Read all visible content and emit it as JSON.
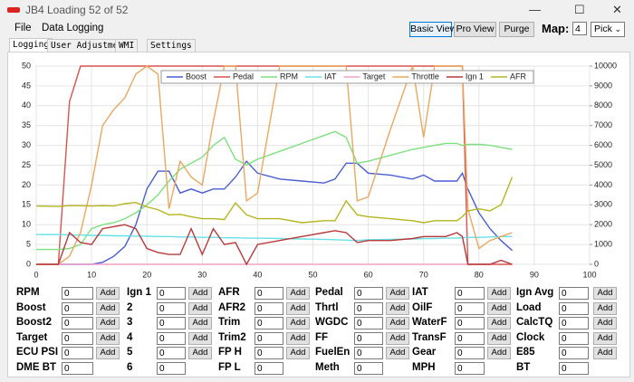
{
  "window": {
    "title": "JB4 Loading 52 of 52"
  },
  "menu": [
    "File",
    "Data Logging"
  ],
  "toolbar": {
    "buttons": [
      "Basic View",
      "Pro View",
      "Purge"
    ],
    "map_label": "Map:",
    "map_value": "4",
    "pick": "Pick"
  },
  "tabs": [
    "Logging",
    "User Adjustment",
    "WMI",
    "Settings"
  ],
  "chart_data": {
    "type": "line",
    "x": [
      0,
      4,
      6,
      8,
      10,
      12,
      14,
      16,
      18,
      20,
      22,
      24,
      26,
      28,
      30,
      32,
      34,
      36,
      38,
      40,
      44,
      48,
      52,
      54,
      56,
      58,
      60,
      64,
      68,
      70,
      72,
      74,
      76,
      77,
      78,
      80,
      82,
      84,
      86
    ],
    "xlim": [
      0,
      100
    ],
    "xticks": [
      0,
      10,
      20,
      30,
      40,
      50,
      60,
      70,
      80,
      90,
      100
    ],
    "ylim": [
      0,
      50
    ],
    "yticks": [
      0,
      5,
      10,
      15,
      20,
      25,
      30,
      35,
      40,
      45,
      50
    ],
    "y2lim": [
      0,
      10000
    ],
    "y2ticks": [
      0,
      1000,
      2000,
      3000,
      4000,
      5000,
      6000,
      7000,
      8000,
      9000,
      10000
    ],
    "grid": true,
    "legend": "top",
    "series": [
      {
        "name": "Boost",
        "color": "#4a5fd0",
        "values": [
          0,
          0,
          0,
          0,
          0,
          0.5,
          2,
          4.5,
          10,
          19,
          23.5,
          23.5,
          18,
          19,
          18,
          19,
          19,
          22,
          26,
          23,
          21.5,
          21,
          20.5,
          21.5,
          25.5,
          25.5,
          23,
          22.5,
          21.5,
          22.5,
          21,
          21,
          21,
          23,
          19,
          13,
          9,
          6,
          3.5
        ]
      },
      {
        "name": "Pedal",
        "color": "#d9534f",
        "values": [
          0,
          0,
          41,
          50,
          50,
          50,
          50,
          50,
          50,
          50,
          50,
          50,
          50,
          50,
          50,
          50,
          50,
          50,
          50,
          50,
          50,
          50,
          50,
          50,
          50,
          50,
          50,
          50,
          50,
          50,
          50,
          50,
          50,
          50,
          0,
          0,
          0,
          0,
          0
        ]
      },
      {
        "name": "RPM",
        "color": "#7ee07e",
        "axis": "y2",
        "values": [
          750,
          750,
          800,
          1000,
          1800,
          2000,
          2100,
          2300,
          2600,
          3000,
          3500,
          4200,
          4800,
          5100,
          5400,
          6000,
          6400,
          5300,
          5000,
          5300,
          5700,
          6100,
          6500,
          6700,
          6400,
          5100,
          5200,
          5500,
          5800,
          5900,
          6000,
          6100,
          6100,
          6000,
          6050,
          6050,
          6000,
          5900,
          5800
        ]
      },
      {
        "name": "IAT",
        "color": "#66e0e6",
        "values": [
          7.5,
          7.5,
          7.4,
          7.4,
          7.3,
          7.3,
          7.2,
          7.2,
          7.1,
          7.1,
          7,
          7,
          6.9,
          6.9,
          6.8,
          6.8,
          6.7,
          6.7,
          6.6,
          6.6,
          6.5,
          6.4,
          6.3,
          6.2,
          6.1,
          6,
          6.2,
          6.3,
          6.4,
          6.5,
          6.5,
          6.6,
          6.6,
          6.7,
          6.8,
          6.8,
          6.9,
          7,
          7
        ]
      },
      {
        "name": "Target",
        "color": "#f0a0c8",
        "values": [
          0,
          0,
          0,
          0,
          0,
          0,
          0,
          0,
          0,
          0,
          0,
          0,
          0,
          0,
          0,
          0,
          0,
          0,
          0,
          0,
          0,
          0,
          0,
          0,
          0,
          0,
          0,
          0,
          0,
          0,
          0,
          0,
          0,
          0,
          0,
          0,
          0,
          1,
          0
        ]
      },
      {
        "name": "Throttle",
        "color": "#e8a860",
        "values": [
          0,
          0,
          2,
          8,
          20,
          35,
          39,
          42,
          48,
          50,
          48,
          14,
          26,
          22,
          20,
          36,
          50,
          50,
          16,
          18,
          50,
          50,
          50,
          50,
          50,
          16,
          17,
          34,
          50,
          32,
          50,
          50,
          50,
          50,
          14,
          4,
          6,
          7,
          8
        ]
      },
      {
        "name": "Ign 1",
        "color": "#b83a3a",
        "values": [
          0,
          0,
          8,
          5.5,
          5,
          9,
          9.5,
          10,
          9,
          4,
          3,
          2.5,
          2.5,
          9,
          2.5,
          9,
          5,
          5.5,
          0,
          5,
          6,
          7,
          8,
          8.5,
          8,
          5.5,
          6,
          6,
          6.5,
          7,
          7,
          7,
          8,
          7,
          0,
          0,
          0,
          1,
          0
        ]
      },
      {
        "name": "AFR",
        "color": "#b5b520",
        "values": [
          14.7,
          14.6,
          14.8,
          14.8,
          14.7,
          14.8,
          14.7,
          15.3,
          15.6,
          14.5,
          13.8,
          12.5,
          12.6,
          12,
          11.5,
          11.5,
          11.3,
          15.5,
          12.5,
          11.5,
          11.5,
          10.5,
          11,
          11,
          16,
          12.5,
          12,
          11.5,
          11,
          10.5,
          11,
          11,
          11,
          12,
          13.5,
          14,
          13.5,
          15,
          22
        ]
      }
    ]
  },
  "fields": {
    "add_button": "Add",
    "columns": [
      [
        {
          "label": "RPM",
          "value": "0"
        },
        {
          "label": "Boost",
          "value": "0"
        },
        {
          "label": "Boost2",
          "value": "0"
        },
        {
          "label": "Target",
          "value": "0"
        },
        {
          "label": "ECU PSI",
          "value": "0"
        },
        {
          "label": "DME BT",
          "value": "0"
        }
      ],
      [
        {
          "label": "Ign 1",
          "value": "0"
        },
        {
          "label": "2",
          "value": "0"
        },
        {
          "label": "3",
          "value": "0"
        },
        {
          "label": "4",
          "value": "0"
        },
        {
          "label": "5",
          "value": "0"
        },
        {
          "label": "6",
          "value": "0"
        }
      ],
      [
        {
          "label": "AFR",
          "value": "0"
        },
        {
          "label": "AFR2",
          "value": "0"
        },
        {
          "label": "Trim",
          "value": "0"
        },
        {
          "label": "Trim2",
          "value": "0"
        },
        {
          "label": "FP H",
          "value": "0"
        },
        {
          "label": "FP L",
          "value": "0"
        }
      ],
      [
        {
          "label": "Pedal",
          "value": "0"
        },
        {
          "label": "Thrtl",
          "value": "0"
        },
        {
          "label": "WGDC",
          "value": "0"
        },
        {
          "label": "FF",
          "value": "0"
        },
        {
          "label": "FuelEn",
          "value": "0"
        },
        {
          "label": "Meth",
          "value": "0"
        }
      ],
      [
        {
          "label": "IAT",
          "value": "0"
        },
        {
          "label": "OilF",
          "value": "0"
        },
        {
          "label": "WaterF",
          "value": "0"
        },
        {
          "label": "TransF",
          "value": "0"
        },
        {
          "label": "Gear",
          "value": "0"
        },
        {
          "label": "MPH",
          "value": "0"
        }
      ],
      [
        {
          "label": "Ign Avg",
          "value": "0"
        },
        {
          "label": "Load",
          "value": "0"
        },
        {
          "label": "CalcTQ",
          "value": "0"
        },
        {
          "label": "Clock",
          "value": "0"
        },
        {
          "label": "E85",
          "value": "0"
        },
        {
          "label": "BT",
          "value": "0"
        }
      ]
    ]
  }
}
